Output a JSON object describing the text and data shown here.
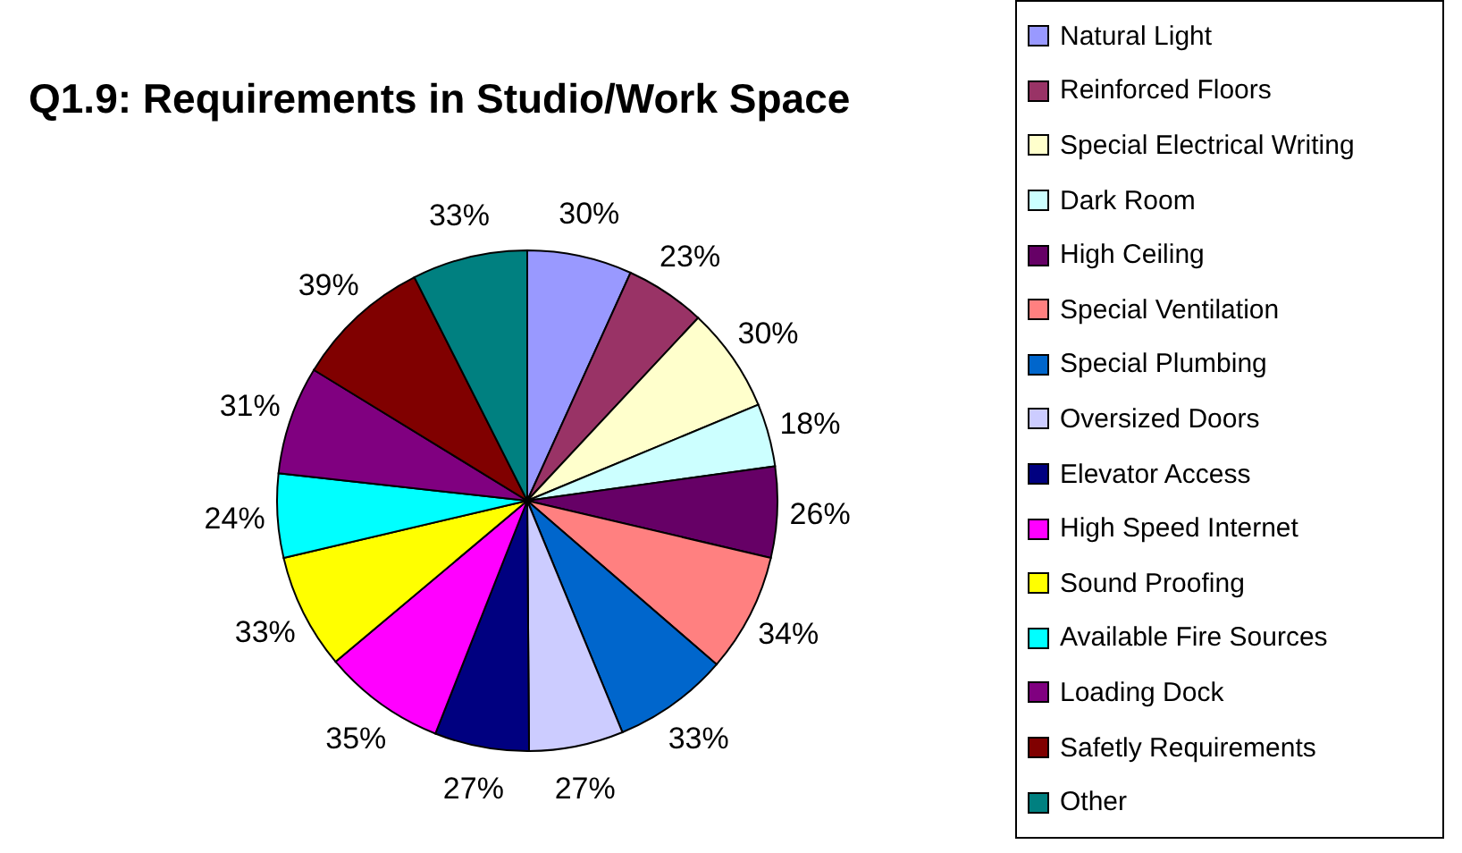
{
  "chart_data": {
    "type": "pie",
    "title": "Q1.9: Requirements in Studio/Work Space",
    "categories": [
      "Natural Light",
      "Reinforced Floors",
      "Special Electrical Writing",
      "Dark Room",
      "High Ceiling",
      "Special Ventilation",
      "Special Plumbing",
      "Oversized Doors",
      "Elevator Access",
      "High Speed Internet",
      "Sound Proofing",
      "Available Fire Sources",
      "Loading Dock",
      "Safetly Requirements",
      "Other"
    ],
    "values": [
      30,
      23,
      30,
      18,
      26,
      34,
      33,
      27,
      27,
      35,
      33,
      24,
      31,
      39,
      33
    ],
    "value_labels": [
      "30%",
      "23%",
      "30%",
      "18%",
      "26%",
      "34%",
      "33%",
      "27%",
      "27%",
      "35%",
      "33%",
      "24%",
      "31%",
      "39%",
      "33%"
    ],
    "colors": [
      "#9999ff",
      "#993366",
      "#ffffcc",
      "#ccffff",
      "#660066",
      "#ff8080",
      "#0066cc",
      "#ccccff",
      "#000080",
      "#ff00ff",
      "#ffff00",
      "#00ffff",
      "#800080",
      "#800000",
      "#008080"
    ],
    "legend": "right"
  }
}
